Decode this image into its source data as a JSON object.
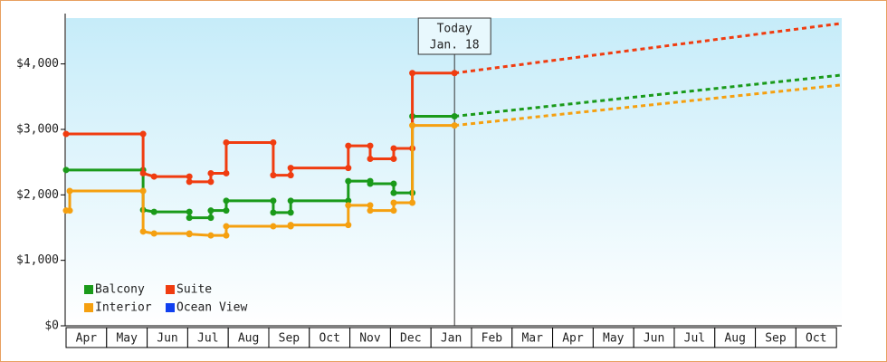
{
  "chart_data": {
    "type": "line",
    "xlim": [
      0,
      19.13
    ],
    "ylim": [
      0,
      4700
    ],
    "yticks": [
      {
        "value": 0,
        "label": "$0"
      },
      {
        "value": 1000,
        "label": "$1,000"
      },
      {
        "value": 2000,
        "label": "$2,000"
      },
      {
        "value": 3000,
        "label": "$3,000"
      },
      {
        "value": 4000,
        "label": "$4,000"
      }
    ],
    "xticks": [
      {
        "value": 0.5,
        "label": "Apr"
      },
      {
        "value": 1.5,
        "label": "May"
      },
      {
        "value": 2.5,
        "label": "Jun"
      },
      {
        "value": 3.5,
        "label": "Jul"
      },
      {
        "value": 4.5,
        "label": "Aug"
      },
      {
        "value": 5.5,
        "label": "Sep"
      },
      {
        "value": 6.5,
        "label": "Oct"
      },
      {
        "value": 7.5,
        "label": "Nov"
      },
      {
        "value": 8.5,
        "label": "Dec"
      },
      {
        "value": 9.5,
        "label": "Jan"
      },
      {
        "value": 10.5,
        "label": "Feb"
      },
      {
        "value": 11.5,
        "label": "Mar"
      },
      {
        "value": 12.5,
        "label": "Apr"
      },
      {
        "value": 13.5,
        "label": "May"
      },
      {
        "value": 14.5,
        "label": "Jun"
      },
      {
        "value": 15.5,
        "label": "Jul"
      },
      {
        "value": 16.5,
        "label": "Aug"
      },
      {
        "value": 17.5,
        "label": "Sep"
      },
      {
        "value": 18.5,
        "label": "Oct"
      }
    ],
    "legend": "lower left",
    "annotation": {
      "x": 9.58,
      "lines": [
        "Today",
        "Jan. 18"
      ]
    },
    "series": [
      {
        "name": "Balcony",
        "color": "#1a9a1a",
        "x": [
          0,
          1.9,
          1.9,
          2.17,
          3.04,
          3.04,
          3.57,
          3.57,
          3.95,
          3.95,
          5.11,
          5.11,
          5.54,
          5.54,
          6.96,
          6.96,
          7.5,
          7.5,
          8.08,
          8.08,
          8.54,
          8.54,
          9.58
        ],
        "values": [
          2380,
          2380,
          1770,
          1740,
          1740,
          1650,
          1650,
          1760,
          1760,
          1910,
          1910,
          1730,
          1730,
          1910,
          1910,
          2210,
          2210,
          2170,
          2170,
          2030,
          2030,
          3200,
          3200
        ],
        "forecast_x": [
          9.58,
          19.13
        ],
        "forecast_values": [
          3200,
          3830
        ]
      },
      {
        "name": "Suite",
        "color": "#f03c10",
        "x": [
          0,
          1.9,
          1.9,
          2.17,
          3.04,
          3.04,
          3.57,
          3.57,
          3.95,
          3.95,
          5.11,
          5.11,
          5.54,
          5.54,
          6.96,
          6.96,
          7.5,
          7.5,
          8.08,
          8.08,
          8.54,
          8.54,
          9.58
        ],
        "values": [
          2930,
          2930,
          2330,
          2280,
          2280,
          2200,
          2200,
          2330,
          2330,
          2800,
          2800,
          2300,
          2300,
          2410,
          2410,
          2750,
          2750,
          2550,
          2550,
          2710,
          2710,
          3860,
          3860
        ],
        "forecast_x": [
          9.58,
          19.13
        ],
        "forecast_values": [
          3860,
          4620
        ]
      },
      {
        "name": "Interior",
        "color": "#f5a010",
        "x": [
          0,
          0.09,
          0.09,
          1.9,
          1.9,
          2.17,
          3.04,
          3.04,
          3.57,
          3.95,
          3.95,
          5.11,
          5.54,
          5.54,
          6.96,
          6.96,
          7.5,
          7.5,
          8.08,
          8.08,
          8.54,
          8.54,
          9.58
        ],
        "values": [
          1760,
          1760,
          2060,
          2060,
          1440,
          1410,
          1410,
          1400,
          1380,
          1380,
          1520,
          1520,
          1520,
          1540,
          1540,
          1840,
          1840,
          1760,
          1760,
          1880,
          1880,
          3060,
          3060
        ],
        "forecast_x": [
          9.58,
          19.13
        ],
        "forecast_values": [
          3060,
          3680
        ]
      },
      {
        "name": "Ocean View",
        "color": "#1040f0",
        "x": [],
        "values": [],
        "forecast_x": [],
        "forecast_values": []
      }
    ]
  }
}
